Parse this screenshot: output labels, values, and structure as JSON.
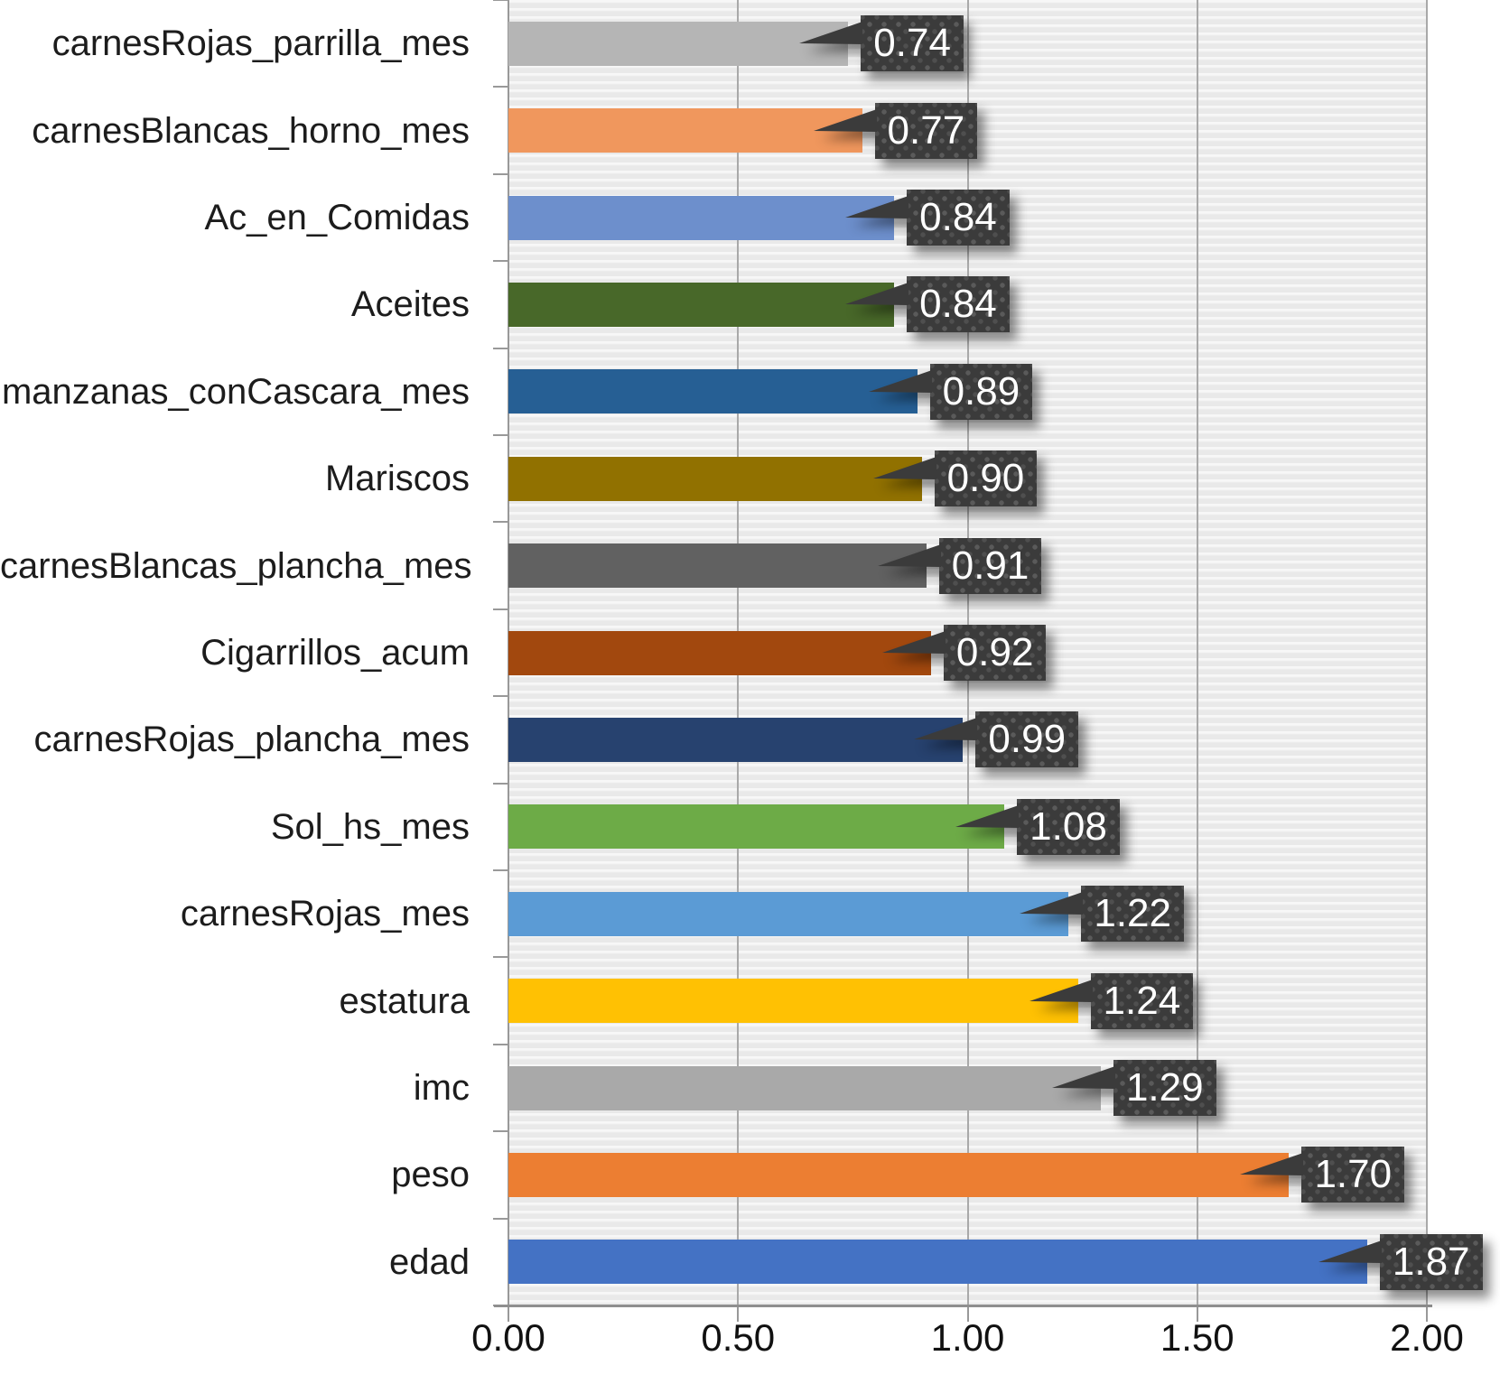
{
  "chart_data": {
    "type": "bar",
    "orientation": "horizontal",
    "title": "",
    "xlabel": "",
    "ylabel": "",
    "xlim": [
      0,
      2
    ],
    "grid": "vertical-major",
    "legend": "none",
    "plot_bg_color": "#e9e9e9",
    "callout_style": {
      "background": "#3b3b3b",
      "dot_color": "#5a5a5a",
      "text_color": "#ffffff"
    },
    "bars": [
      {
        "label": "carnesRojas_parrilla_mes",
        "value": 0.74,
        "value_label": "0.74",
        "color": "#b5b5b5"
      },
      {
        "label": "carnesBlancas_horno_mes",
        "value": 0.77,
        "value_label": "0.77",
        "color": "#f0975d"
      },
      {
        "label": "Ac_en_Comidas",
        "value": 0.84,
        "value_label": "0.84",
        "color": "#6d8fcc"
      },
      {
        "label": "Aceites",
        "value": 0.84,
        "value_label": "0.84",
        "color": "#486829"
      },
      {
        "label": "manzanas_conCascara_mes",
        "value": 0.89,
        "value_label": "0.89",
        "color": "#265f94"
      },
      {
        "label": "Mariscos",
        "value": 0.9,
        "value_label": "0.90",
        "color": "#917100"
      },
      {
        "label": "carnesBlancas_plancha_mes",
        "value": 0.91,
        "value_label": "0.91",
        "color": "#616161"
      },
      {
        "label": "Cigarrillos_acum",
        "value": 0.92,
        "value_label": "0.92",
        "color": "#a2480e"
      },
      {
        "label": "carnesRojas_plancha_mes",
        "value": 0.99,
        "value_label": "0.99",
        "color": "#27426f"
      },
      {
        "label": "Sol_hs_mes",
        "value": 1.08,
        "value_label": "1.08",
        "color": "#6dab47"
      },
      {
        "label": "carnesRojas_mes",
        "value": 1.22,
        "value_label": "1.22",
        "color": "#5b9bd5"
      },
      {
        "label": "estatura",
        "value": 1.24,
        "value_label": "1.24",
        "color": "#ffc103"
      },
      {
        "label": "imc",
        "value": 1.29,
        "value_label": "1.29",
        "color": "#a9a9a9"
      },
      {
        "label": "peso",
        "value": 1.7,
        "value_label": "1.70",
        "color": "#ec7e32"
      },
      {
        "label": "edad",
        "value": 1.87,
        "value_label": "1.87",
        "color": "#4472c4"
      }
    ],
    "xticks": {
      "values": [
        0,
        0.5,
        1.0,
        1.5,
        2.0
      ],
      "labels": [
        "0.00",
        "0.50",
        "1.00",
        "1.50",
        "2.00"
      ]
    }
  }
}
